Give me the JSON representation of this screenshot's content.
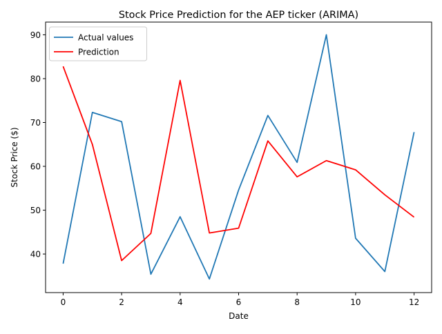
{
  "chart_data": {
    "type": "line",
    "title": "Stock Price Prediction for the AEP ticker (ARIMA)",
    "xlabel": "Date",
    "ylabel": "Stock Price ($)",
    "xlim": [
      -0.6,
      12.6
    ],
    "ylim": [
      31.2,
      92.9
    ],
    "x_ticks": [
      0,
      2,
      4,
      6,
      8,
      10,
      12
    ],
    "x_tick_labels": [
      "0",
      "2",
      "4",
      "6",
      "8",
      "10",
      "12"
    ],
    "y_ticks": [
      40,
      50,
      60,
      70,
      80,
      90
    ],
    "y_tick_labels": [
      "40",
      "50",
      "60",
      "70",
      "80",
      "90"
    ],
    "grid": false,
    "legend_position": "top-left",
    "x": [
      0,
      1,
      2,
      3,
      4,
      5,
      6,
      7,
      8,
      9,
      10,
      11,
      12
    ],
    "series": [
      {
        "name": "Actual values",
        "color": "#1f77b4",
        "values": [
          37.8,
          72.3,
          70.2,
          35.4,
          48.5,
          34.3,
          54.6,
          71.6,
          60.9,
          90.0,
          43.6,
          36.0,
          67.8
        ]
      },
      {
        "name": "Prediction",
        "color": "#ff0000",
        "values": [
          82.8,
          65.0,
          38.5,
          44.7,
          79.6,
          44.8,
          45.9,
          65.8,
          57.6,
          61.3,
          59.2,
          53.5,
          48.4
        ]
      }
    ]
  }
}
